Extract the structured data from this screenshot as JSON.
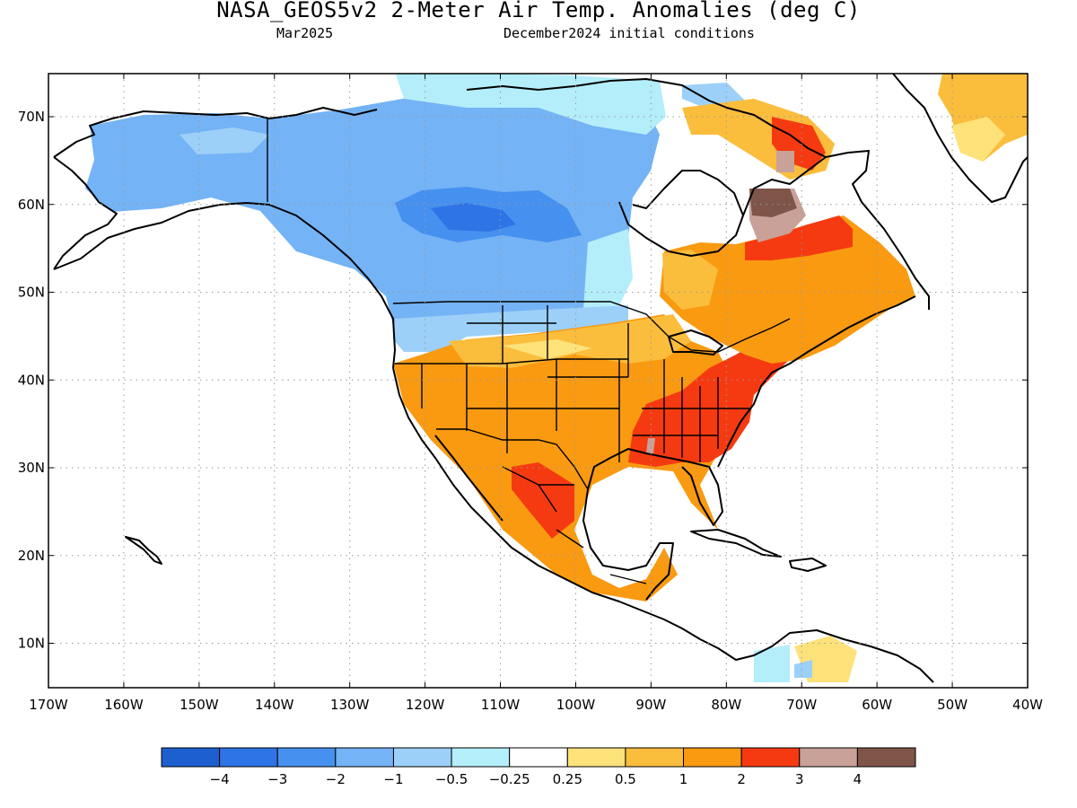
{
  "header": {
    "title": "NASA_GEOS5v2 2-Meter Air Temp. Anomalies (deg C)",
    "month": "Mar2025",
    "init": "December2024 initial conditions"
  },
  "axes": {
    "lon_labels": [
      "170W",
      "160W",
      "150W",
      "140W",
      "130W",
      "120W",
      "110W",
      "100W",
      "90W",
      "80W",
      "70W",
      "60W",
      "50W",
      "40W"
    ],
    "lat_labels": [
      "70N",
      "60N",
      "50N",
      "40N",
      "30N",
      "20N",
      "10N"
    ]
  },
  "colorbar": {
    "colors": [
      "#1e5fcf",
      "#2f74e6",
      "#4690ef",
      "#74b3f5",
      "#9cd0f8",
      "#b4eefa",
      "#ffffff",
      "#fde27a",
      "#fbbd3c",
      "#f99a11",
      "#f53a12",
      "#c9a199",
      "#7e5548"
    ],
    "labels": [
      "−4",
      "−3",
      "−2",
      "−1",
      "−0.5",
      "−0.25",
      "0.25",
      "0.5",
      "1",
      "2",
      "3",
      "4"
    ]
  },
  "map_data": {
    "region": "North America",
    "lon_range": [
      "170W",
      "40W"
    ],
    "lat_range": [
      "5N",
      "75N"
    ],
    "anomaly_regions": [
      {
        "area": "Alaska and western/central Canada",
        "class": "-2 to -0.5"
      },
      {
        "area": "Northern US Plains and Great Lakes",
        "class": "0.25 to 1"
      },
      {
        "area": "Southwest US and Mexico",
        "class": "1 to 2"
      },
      {
        "area": "Southeast US, Mid-Atlantic and New England",
        "class": "2 to 3"
      },
      {
        "area": "Northern Quebec and Labrador",
        "class": "3 to >4"
      },
      {
        "area": "Greenland east coast",
        "class": "0.25 to 1"
      }
    ]
  }
}
